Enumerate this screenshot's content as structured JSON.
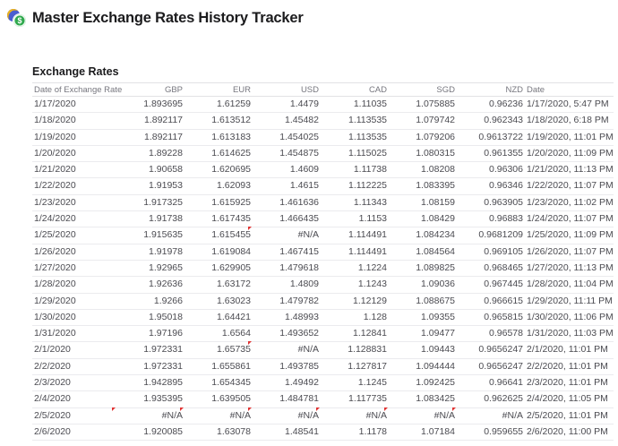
{
  "page": {
    "title": "Master Exchange Rates History Tracker",
    "icon_glyph": "$"
  },
  "section": {
    "heading": "Exchange Rates"
  },
  "table": {
    "na_value": "#N/A",
    "columns": [
      {
        "label": "Date of Exchange Rate",
        "align": "left"
      },
      {
        "label": "GBP",
        "align": "right"
      },
      {
        "label": "EUR",
        "align": "right"
      },
      {
        "label": "USD",
        "align": "right"
      },
      {
        "label": "CAD",
        "align": "right"
      },
      {
        "label": "SGD",
        "align": "right"
      },
      {
        "label": "NZD",
        "align": "right"
      },
      {
        "label": "Date",
        "align": "left"
      }
    ],
    "rows": [
      {
        "cells": [
          "1/17/2020",
          "1.893695",
          "1.61259",
          "1.4479",
          "1.11035",
          "1.075885",
          "0.96236",
          "1/17/2020, 5:47 PM"
        ]
      },
      {
        "cells": [
          "1/18/2020",
          "1.892117",
          "1.613512",
          "1.45482",
          "1.113535",
          "1.079742",
          "0.962343",
          "1/18/2020, 6:18 PM"
        ]
      },
      {
        "cells": [
          "1/19/2020",
          "1.892117",
          "1.613183",
          "1.454025",
          "1.113535",
          "1.079206",
          "0.9613722",
          "1/19/2020, 11:01 PM"
        ]
      },
      {
        "cells": [
          "1/20/2020",
          "1.89228",
          "1.614625",
          "1.454875",
          "1.115025",
          "1.080315",
          "0.961355",
          "1/20/2020, 11:09 PM"
        ]
      },
      {
        "cells": [
          "1/21/2020",
          "1.90658",
          "1.620695",
          "1.4609",
          "1.11738",
          "1.08208",
          "0.96306",
          "1/21/2020, 11:13 PM"
        ]
      },
      {
        "cells": [
          "1/22/2020",
          "1.91953",
          "1.62093",
          "1.4615",
          "1.112225",
          "1.083395",
          "0.96346",
          "1/22/2020, 11:07 PM"
        ]
      },
      {
        "cells": [
          "1/23/2020",
          "1.917325",
          "1.615925",
          "1.461636",
          "1.11343",
          "1.08159",
          "0.963905",
          "1/23/2020, 11:02 PM"
        ]
      },
      {
        "cells": [
          "1/24/2020",
          "1.91738",
          "1.617435",
          "1.466435",
          "1.1153",
          "1.08429",
          "0.96883",
          "1/24/2020, 11:07 PM"
        ]
      },
      {
        "cells": [
          "1/25/2020",
          "1.915635",
          "1.615455",
          "#N/A",
          "1.114491",
          "1.084234",
          "0.9681209",
          "1/25/2020, 11:09 PM"
        ],
        "flags": [
          3
        ]
      },
      {
        "cells": [
          "1/26/2020",
          "1.91978",
          "1.619084",
          "1.467415",
          "1.114491",
          "1.084564",
          "0.969105",
          "1/26/2020, 11:07 PM"
        ]
      },
      {
        "cells": [
          "1/27/2020",
          "1.92965",
          "1.629905",
          "1.479618",
          "1.1224",
          "1.089825",
          "0.968465",
          "1/27/2020, 11:13 PM"
        ]
      },
      {
        "cells": [
          "1/28/2020",
          "1.92636",
          "1.63172",
          "1.4809",
          "1.1243",
          "1.09036",
          "0.967445",
          "1/28/2020, 11:04 PM"
        ]
      },
      {
        "cells": [
          "1/29/2020",
          "1.9266",
          "1.63023",
          "1.479782",
          "1.12129",
          "1.088675",
          "0.966615",
          "1/29/2020, 11:11 PM"
        ]
      },
      {
        "cells": [
          "1/30/2020",
          "1.95018",
          "1.64421",
          "1.48993",
          "1.128",
          "1.09355",
          "0.965815",
          "1/30/2020, 11:06 PM"
        ]
      },
      {
        "cells": [
          "1/31/2020",
          "1.97196",
          "1.6564",
          "1.493652",
          "1.12841",
          "1.09477",
          "0.96578",
          "1/31/2020, 11:03 PM"
        ]
      },
      {
        "cells": [
          "2/1/2020",
          "1.972331",
          "1.65735",
          "#N/A",
          "1.128831",
          "1.09443",
          "0.9656247",
          "2/1/2020, 11:01 PM"
        ],
        "flags": [
          3
        ]
      },
      {
        "cells": [
          "2/2/2020",
          "1.972331",
          "1.655861",
          "1.493785",
          "1.127817",
          "1.094444",
          "0.9656247",
          "2/2/2020, 11:01 PM"
        ]
      },
      {
        "cells": [
          "2/3/2020",
          "1.942895",
          "1.654345",
          "1.49492",
          "1.1245",
          "1.092425",
          "0.96641",
          "2/3/2020, 11:01 PM"
        ]
      },
      {
        "cells": [
          "2/4/2020",
          "1.935395",
          "1.639505",
          "1.484781",
          "1.117735",
          "1.083425",
          "0.962625",
          "2/4/2020, 11:05 PM"
        ]
      },
      {
        "cells": [
          "2/5/2020",
          "#N/A",
          "#N/A",
          "#N/A",
          "#N/A",
          "#N/A",
          "#N/A",
          "2/5/2020, 11:01 PM"
        ],
        "flags": [
          1,
          2,
          3,
          4,
          5,
          6
        ]
      },
      {
        "cells": [
          "2/6/2020",
          "1.920085",
          "1.63078",
          "1.48541",
          "1.1178",
          "1.07184",
          "0.959655",
          "2/6/2020, 11:00 PM"
        ]
      }
    ]
  },
  "colors": {
    "title_text": "#1b1b1d",
    "header_text": "#76767e",
    "cell_text": "#4b4b51",
    "divider": "#ebebee",
    "error_flag": "#e03131",
    "coin_green": "#2fa94d",
    "coin_blue": "#4a5fd0",
    "coin_gold": "#ecb21c"
  }
}
